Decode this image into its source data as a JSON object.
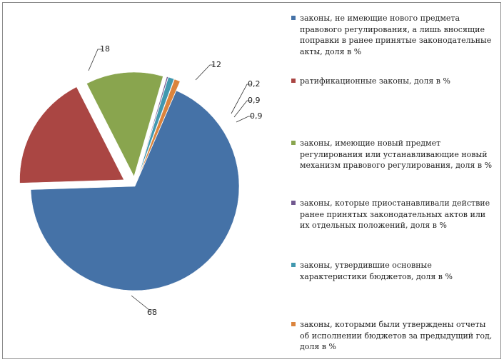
{
  "chart_data": {
    "type": "pie",
    "values": [
      68,
      18,
      12,
      0.2,
      0.9,
      0.9
    ],
    "data_labels": [
      "68",
      "18",
      "12",
      "0,2",
      "0,9",
      "0,9"
    ],
    "series": [
      {
        "name": "законы, не имеющие нового предмета правового регулирования, а лишь вносящие поправки в ранее принятые законодательные акты, доля в %",
        "value": 68,
        "color": "#4572A7"
      },
      {
        "name": "ратификационные законы, доля в %",
        "value": 18,
        "color": "#AA4643"
      },
      {
        "name": "законы, имеющие новый предмет регулирования или устанавливающие новый механизм правового регулирования, доля в %",
        "value": 12,
        "color": "#89A54E"
      },
      {
        "name": "законы, которые приостанавливали действие ранее принятых законодательных актов или их отдельных положений, доля в %",
        "value": 0.2,
        "color": "#71588F"
      },
      {
        "name": "законы, утвердившие основные характеристики бюджетов, доля в %",
        "value": 0.9,
        "color": "#4198AF"
      },
      {
        "name": "законы, которыми были утверждены отчеты об исполнении бюджетов за предыдущий год, доля в %",
        "value": 0.9,
        "color": "#DB843D"
      }
    ],
    "legend": "right"
  }
}
